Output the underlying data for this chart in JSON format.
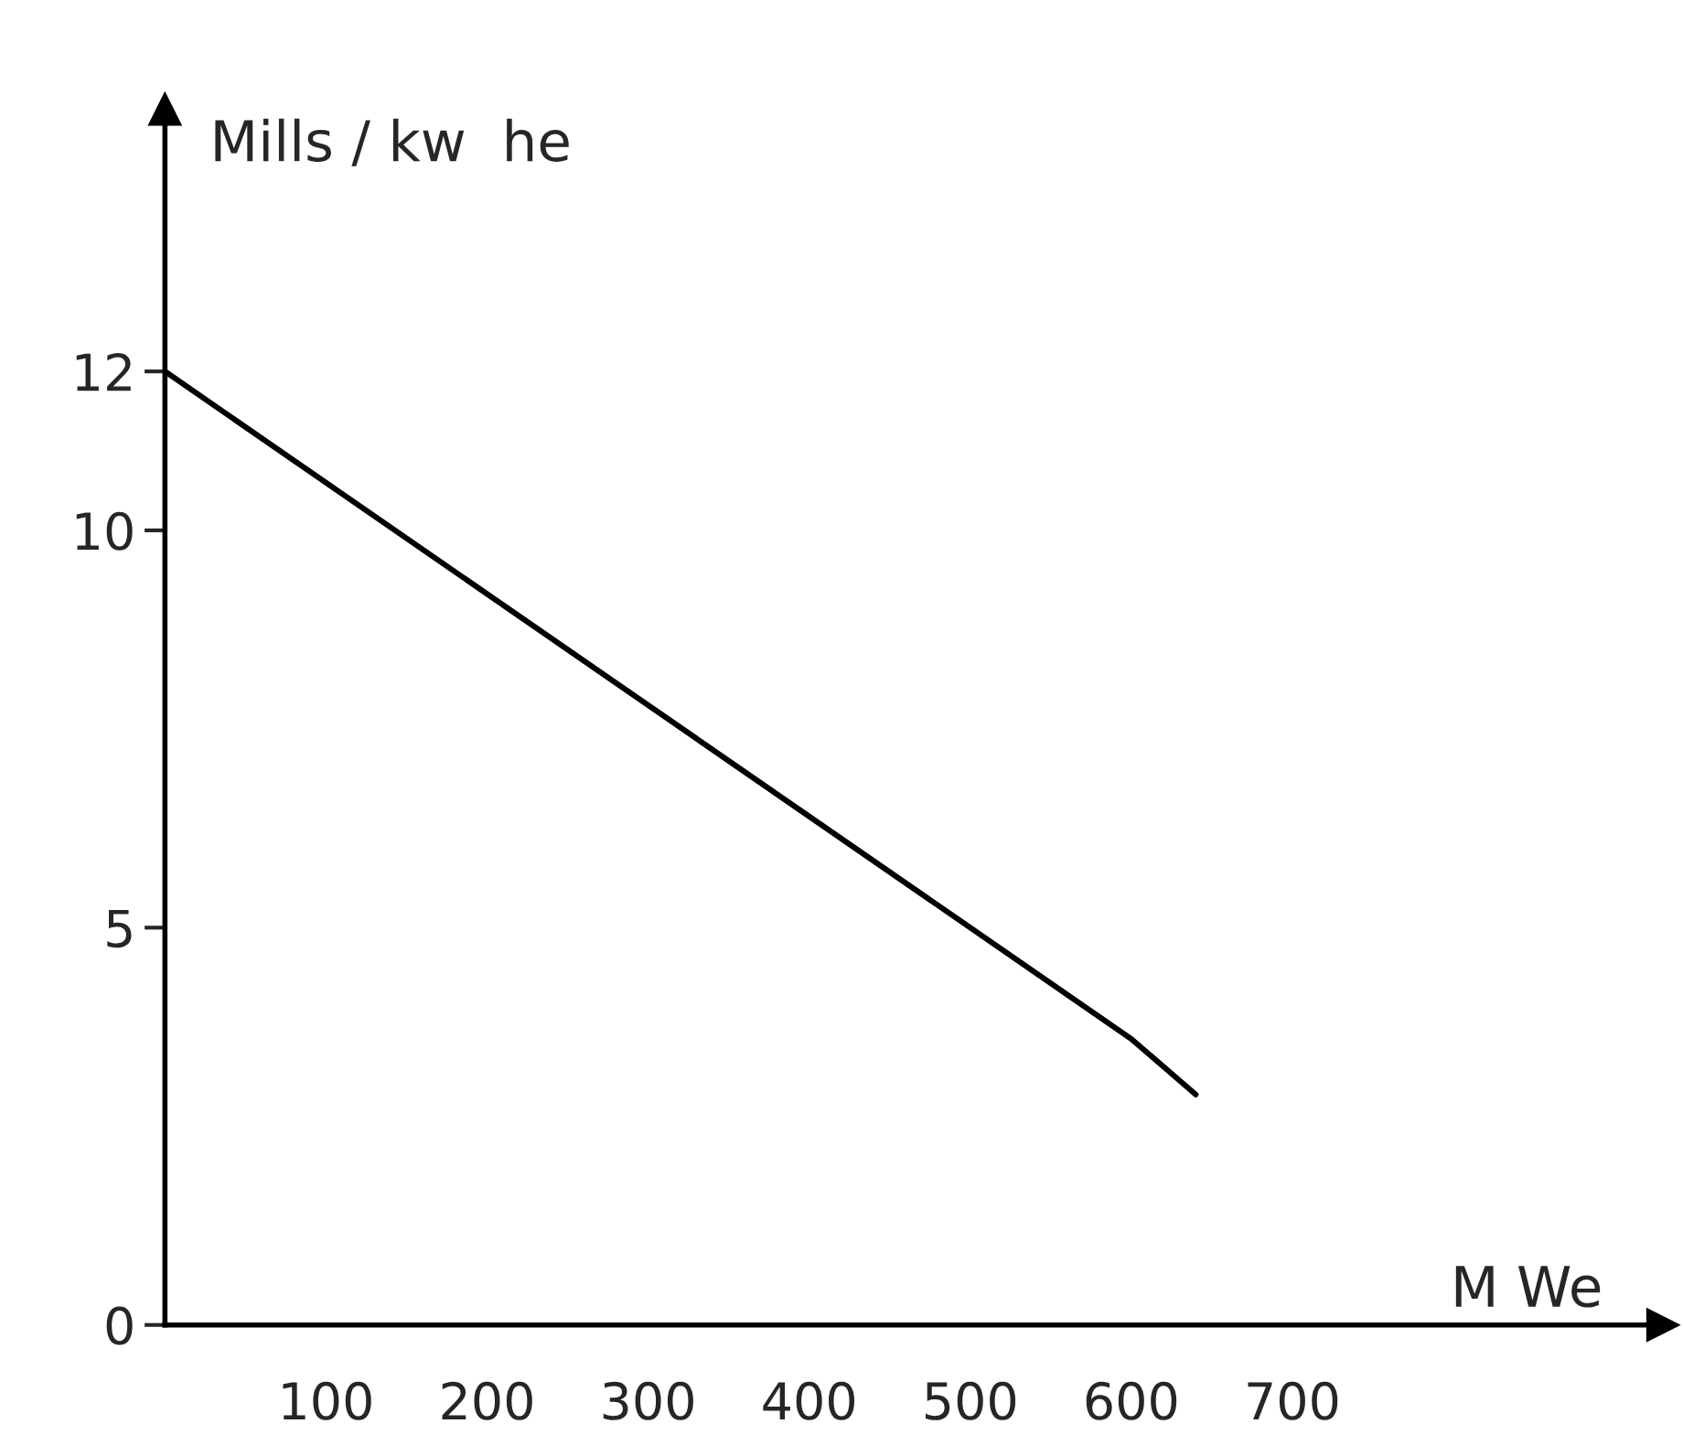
{
  "chart_data": {
    "type": "line",
    "xlabel": "M We",
    "ylabel": "Mills / kw  he",
    "x": [
      0,
      500,
      600,
      640
    ],
    "series": [
      {
        "color": "#000000",
        "values": [
          12,
          5,
          3.6,
          2.9
        ]
      }
    ],
    "xlim": [
      0,
      930
    ],
    "ylim": [
      0,
      15.3
    ],
    "xticks": [
      100,
      200,
      300,
      400,
      500,
      600,
      700
    ],
    "yticks": [
      0,
      5,
      10,
      12
    ],
    "grid": false,
    "marker": "none",
    "line_style": "solid"
  }
}
